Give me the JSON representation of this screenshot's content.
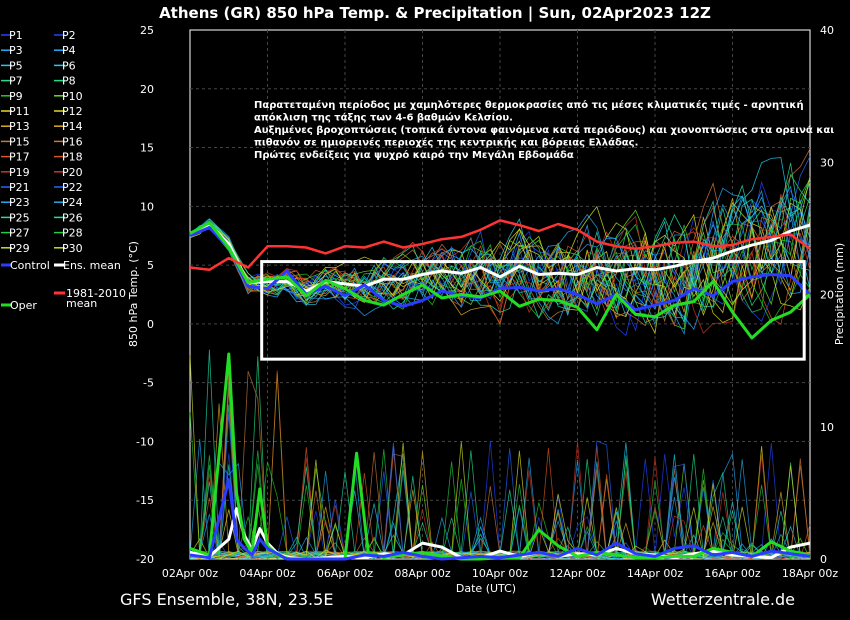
{
  "chart_data": {
    "type": "line",
    "title": "Athens  (GR)  850 hPa Temp. & Precipitation | Sun, 02Apr2023 12Z",
    "ylabel_left": "850 hPa Temp. (°C)",
    "ylabel_right": "Precipitation (mm)",
    "xlabel": "Date (UTC)",
    "footer_left": "GFS Ensemble, 38N, 23.5E",
    "footer_right": "Wetterzentrale.de",
    "ylim_left": [
      -20,
      25
    ],
    "yticks_left": [
      25,
      20,
      15,
      10,
      5,
      0,
      -5,
      -10,
      -15,
      -20
    ],
    "ylim_right": [
      0,
      40
    ],
    "yticks_right": [
      40,
      30,
      20,
      10,
      0
    ],
    "x_range_days": [
      0,
      16
    ],
    "xticks": [
      "02Apr 00z",
      "04Apr 00z",
      "06Apr 00z",
      "08Apr 00z",
      "10Apr 00z",
      "12Apr 00z",
      "14Apr 00z",
      "16Apr 00z",
      "18Apr 00z"
    ],
    "grid": true,
    "legend": {
      "placement": "left",
      "entries": [
        "P1",
        "P2",
        "P3",
        "P4",
        "P5",
        "P6",
        "P7",
        "P8",
        "P9",
        "P10",
        "P11",
        "P12",
        "P13",
        "P14",
        "P15",
        "P16",
        "P17",
        "P18",
        "P19",
        "P20",
        "P21",
        "P22",
        "P23",
        "P24",
        "P25",
        "P26",
        "P27",
        "P28",
        "P29",
        "P30",
        "Control",
        "Ens. mean",
        "Oper",
        "1981-2010 mean"
      ]
    },
    "annotation": [
      "Παρατεταμένη περίοδος με χαμηλότερες θερμοκρασίες από τις μέσες κλιματικές τιμές - αρνητική",
      "απόκλιση της τάξης των 4-6 βαθμών Κελσίου.",
      "Αυξημένες βροχοπτώσεις (τοπικά έντονα φαινόμενα κατά περιόδους) και χιονοπτώσεις στα ορεινά και",
      "πιθανόν σε ημιορεινές περιοχές της κεντρικής και βόρειας Ελλάδας.",
      "Πρώτες ενδείξεις για ψυχρό καιρό την Μεγάλη Εβδομάδα"
    ],
    "highlight_box": {
      "x_days": [
        1.85,
        15.85
      ],
      "y_temp": [
        -3,
        5.3
      ]
    },
    "series": [
      {
        "name": "Ens. mean",
        "color": "#ffffff",
        "axis": "temp",
        "x": [
          0,
          0.5,
          1,
          1.5,
          2,
          2.5,
          3,
          3.5,
          4,
          4.5,
          5,
          5.5,
          6,
          6.5,
          7,
          7.5,
          8,
          8.5,
          9,
          9.5,
          10,
          10.5,
          11,
          11.5,
          12,
          12.5,
          13,
          13.5,
          14,
          14.5,
          15,
          15.5,
          16
        ],
        "values": [
          7.5,
          8.5,
          6.8,
          3.5,
          3.6,
          3.6,
          2.8,
          3.6,
          3.4,
          3.2,
          3.8,
          3.8,
          4.2,
          4.5,
          4.3,
          4.8,
          4.0,
          4.9,
          4.2,
          4.3,
          4.2,
          4.8,
          4.5,
          4.7,
          4.6,
          4.9,
          5.3,
          5.6,
          6.2,
          6.7,
          7.1,
          7.9,
          8.4
        ]
      },
      {
        "name": "Control",
        "color": "#2a3cff",
        "axis": "temp",
        "x": [
          0,
          0.5,
          1,
          1.5,
          2,
          2.5,
          3,
          3.5,
          4,
          4.5,
          5,
          5.5,
          6,
          6.5,
          7,
          7.5,
          8,
          8.5,
          9,
          9.5,
          10,
          10.5,
          11,
          11.5,
          12,
          12.5,
          13,
          13.5,
          14,
          14.5,
          15,
          15.5,
          16
        ],
        "values": [
          7.5,
          8.2,
          6.5,
          3.2,
          3.0,
          4.5,
          2.5,
          3.2,
          2.4,
          3.3,
          2.0,
          1.5,
          2.0,
          2.8,
          2.4,
          2.2,
          3.0,
          3.1,
          2.8,
          3.0,
          2.5,
          1.7,
          2.5,
          1.2,
          1.6,
          2.0,
          3.0,
          2.4,
          3.6,
          4.0,
          4.2,
          4.1,
          2.5
        ]
      },
      {
        "name": "Oper",
        "color": "#22dd22",
        "axis": "temp",
        "x": [
          0,
          0.5,
          1,
          1.5,
          2,
          2.5,
          3,
          3.5,
          4,
          4.5,
          5,
          5.5,
          6,
          6.5,
          7,
          7.5,
          8,
          8.5,
          9,
          9.5,
          10,
          10.5,
          11,
          11.5,
          12,
          12.5,
          13,
          13.5,
          14,
          14.5,
          15,
          15.5,
          16
        ],
        "values": [
          7.7,
          8.6,
          6.5,
          3.5,
          3.8,
          4.0,
          2.4,
          3.7,
          3.0,
          2.0,
          1.6,
          2.5,
          3.3,
          2.2,
          2.5,
          2.3,
          2.8,
          1.5,
          2.1,
          2.0,
          1.4,
          -0.5,
          2.5,
          0.8,
          0.6,
          1.6,
          1.9,
          3.6,
          1.0,
          -1.2,
          0.3,
          1.0,
          2.5
        ]
      },
      {
        "name": "1981-2010 mean",
        "color": "#ff3333",
        "axis": "temp",
        "x": [
          0,
          0.5,
          1,
          1.5,
          2,
          2.5,
          3,
          3.5,
          4,
          4.5,
          5,
          5.5,
          6,
          6.5,
          7,
          7.5,
          8,
          8.5,
          9,
          9.5,
          10,
          10.5,
          11,
          11.5,
          12,
          12.5,
          13,
          13.5,
          14,
          14.5,
          15,
          15.5,
          16
        ],
        "values": [
          4.8,
          4.6,
          5.6,
          4.8,
          6.6,
          6.6,
          6.5,
          6.0,
          6.6,
          6.5,
          7.0,
          6.5,
          6.8,
          7.2,
          7.4,
          8.0,
          8.8,
          8.4,
          7.9,
          8.5,
          8.0,
          7.0,
          6.6,
          6.4,
          6.6,
          6.9,
          7.0,
          6.6,
          6.7,
          7.2,
          7.4,
          7.6,
          6.4
        ]
      },
      {
        "name": "Ens. mean",
        "color": "#ffffff",
        "axis": "precip",
        "x": [
          0,
          0.5,
          1,
          1.2,
          1.4,
          1.6,
          1.8,
          2,
          2.3,
          2.6,
          3,
          3.5,
          4,
          4.5,
          5,
          5.5,
          6,
          6.5,
          7,
          7.5,
          8,
          8.5,
          9,
          9.5,
          10,
          10.5,
          11,
          11.5,
          12,
          12.5,
          13,
          13.5,
          14,
          14.5,
          15,
          15.5,
          16
        ],
        "values": [
          0.5,
          0.2,
          1.5,
          3.8,
          1.8,
          0.7,
          2.3,
          1.2,
          0.3,
          0.1,
          0.0,
          0.1,
          0.2,
          0.1,
          0.4,
          0.3,
          1.2,
          0.9,
          0.1,
          0.1,
          0.6,
          0.2,
          0.5,
          0.2,
          0.4,
          0.3,
          0.8,
          0.4,
          0.3,
          0.1,
          0.4,
          0.6,
          0.3,
          0.2,
          0.1,
          0.9,
          1.2
        ]
      },
      {
        "name": "Oper",
        "color": "#22dd22",
        "axis": "precip",
        "x": [
          0,
          0.5,
          1,
          1.2,
          1.4,
          1.6,
          1.8,
          2,
          2.3,
          2.6,
          3,
          3.5,
          4,
          4.3,
          4.6,
          5,
          5.5,
          6,
          6.5,
          7,
          7.5,
          8,
          8.5,
          9,
          9.5,
          10,
          10.5,
          11,
          11.5,
          12,
          12.5,
          13,
          13.5,
          14,
          14.5,
          15,
          15.5,
          16
        ],
        "values": [
          0.8,
          0.3,
          15.5,
          5.0,
          1.5,
          0.5,
          5.3,
          1.0,
          0.2,
          0.0,
          0.0,
          0.0,
          0.0,
          8.0,
          0.5,
          0.1,
          0.3,
          0.5,
          0.2,
          0.0,
          0.0,
          0.1,
          0.1,
          2.2,
          1.0,
          0.2,
          0.5,
          0.3,
          0.1,
          0.1,
          0.2,
          0.2,
          0.8,
          0.5,
          0.2,
          1.3,
          0.6,
          0.3
        ]
      },
      {
        "name": "Control",
        "color": "#2a3cff",
        "axis": "precip",
        "x": [
          0,
          0.5,
          1,
          1.2,
          1.4,
          1.6,
          1.8,
          2,
          2.5,
          3,
          3.5,
          4,
          4.5,
          5,
          5.5,
          6,
          6.5,
          7,
          7.5,
          8,
          8.5,
          9,
          9.5,
          10,
          10.5,
          11,
          11.5,
          12,
          12.5,
          13,
          13.5,
          14,
          14.5,
          15,
          15.5,
          16
        ],
        "values": [
          0.3,
          0.1,
          6.0,
          1.5,
          0.8,
          0.3,
          1.5,
          0.8,
          0.0,
          0.0,
          0.0,
          0.0,
          0.3,
          0.2,
          0.5,
          0.2,
          0.0,
          0.1,
          0.2,
          0.1,
          0.3,
          0.5,
          0.2,
          0.8,
          0.3,
          1.2,
          0.4,
          0.2,
          0.8,
          1.0,
          0.3,
          0.5,
          0.2,
          0.6,
          0.4,
          0.2
        ]
      }
    ],
    "members_note": "P1–P30 individual members drawn as thin spaghetti lines in the legend colors"
  },
  "member_colors": [
    "#2244ff",
    "#2244ff",
    "#22aaff",
    "#22aaff",
    "#22ccee",
    "#22ccee",
    "#22dd88",
    "#22dd88",
    "#22cc22",
    "#66dd22",
    "#dddd22",
    "#dddd22",
    "#ddaa22",
    "#ddaa22",
    "#cc7733",
    "#cc7733",
    "#dd5522",
    "#dd5522",
    "#cc3322",
    "#cc3322",
    "#2266ff",
    "#2266ff",
    "#22aaee",
    "#22aaee",
    "#22ddaa",
    "#22ddaa",
    "#22cc44",
    "#22cc44",
    "#ccdd22",
    "#ccdd22"
  ]
}
